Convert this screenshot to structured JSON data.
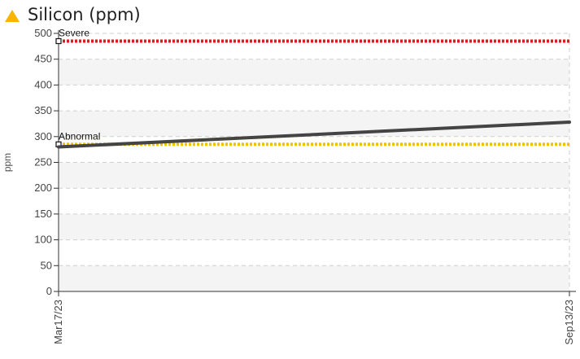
{
  "header": {
    "title": "Silicon (ppm)",
    "icon": "warning-triangle-icon",
    "icon_color": "#f7b500"
  },
  "chart_data": {
    "type": "line",
    "title": "Silicon (ppm)",
    "ylabel": "ppm",
    "xlabel": "",
    "ylim": [
      0,
      500
    ],
    "yticks": [
      0,
      50,
      100,
      150,
      200,
      250,
      300,
      350,
      400,
      450,
      500
    ],
    "x": [
      "Mar17/23",
      "Sep13/23"
    ],
    "series": [
      {
        "values": [
          280,
          328
        ],
        "color": "#444444"
      }
    ],
    "thresholds": [
      {
        "name": "Severe",
        "value": 485,
        "color": "#e8141e"
      },
      {
        "name": "Abnormal",
        "value": 285,
        "color": "#f2c200"
      }
    ],
    "grid": true,
    "legend": "none"
  }
}
